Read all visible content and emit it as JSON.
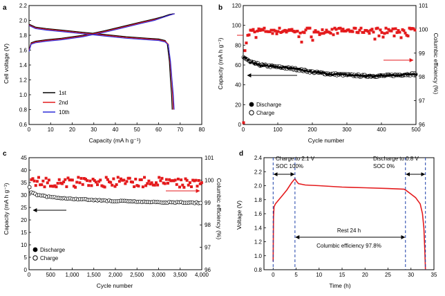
{
  "colors": {
    "black": "#000000",
    "red": "#e41a1c",
    "blue": "#2b2bd9",
    "dash_blue": "#1a3ea8"
  },
  "chart_data": [
    {
      "panel": "a",
      "type": "line",
      "xlabel": "Capacity (mA h g⁻¹)",
      "ylabel": "Cell voltage (V)",
      "xlim": [
        0,
        80
      ],
      "ylim": [
        0.6,
        2.2
      ],
      "xticks": [
        "0",
        "10",
        "20",
        "30",
        "40",
        "50",
        "60",
        "70",
        "80"
      ],
      "yticks": [
        "0.6",
        "0.8",
        "1.0",
        "1.2",
        "1.4",
        "1.6",
        "1.8",
        "2.0",
        "2.2"
      ],
      "legend": "bottom-right",
      "series": [
        {
          "name": "1st",
          "color": "#000000",
          "charge": {
            "x": [
              0,
              1,
              3,
              8,
              15,
              25,
              35,
              45,
              52,
              58,
              62,
              65,
              67
            ],
            "y": [
              1.6,
              1.7,
              1.72,
              1.74,
              1.76,
              1.8,
              1.86,
              1.93,
              1.98,
              2.02,
              2.05,
              2.08,
              2.09
            ]
          },
          "discharge": {
            "x": [
              0,
              3,
              8,
              15,
              25,
              35,
              45,
              55,
              60,
              63,
              64,
              65,
              65.5,
              66,
              66.3
            ],
            "y": [
              1.95,
              1.91,
              1.89,
              1.87,
              1.84,
              1.81,
              1.78,
              1.76,
              1.75,
              1.73,
              1.69,
              1.45,
              1.2,
              1.0,
              0.8
            ]
          }
        },
        {
          "name": "2nd",
          "color": "#e41a1c",
          "charge": {
            "x": [
              0,
              1,
              3,
              8,
              15,
              25,
              35,
              45,
              52,
              58,
              62,
              65,
              67.5
            ],
            "y": [
              1.6,
              1.69,
              1.71,
              1.73,
              1.75,
              1.79,
              1.85,
              1.92,
              1.97,
              2.01,
              2.04,
              2.07,
              2.09
            ]
          },
          "discharge": {
            "x": [
              0,
              3,
              8,
              15,
              25,
              35,
              45,
              55,
              60,
              63,
              64.5,
              65.3,
              66,
              66.5,
              66.8
            ],
            "y": [
              1.94,
              1.9,
              1.88,
              1.86,
              1.83,
              1.8,
              1.77,
              1.75,
              1.74,
              1.72,
              1.68,
              1.45,
              1.2,
              1.0,
              0.8
            ]
          }
        },
        {
          "name": "10th",
          "color": "#2b2bd9",
          "charge": {
            "x": [
              0,
              1,
              3,
              8,
              15,
              25,
              35,
              45,
              52,
              58,
              62,
              65,
              67.5
            ],
            "y": [
              1.58,
              1.68,
              1.7,
              1.72,
              1.74,
              1.78,
              1.84,
              1.91,
              1.96,
              2.0,
              2.04,
              2.07,
              2.09
            ]
          },
          "discharge": {
            "x": [
              0,
              3,
              8,
              15,
              25,
              35,
              45,
              55,
              60,
              63,
              64.5,
              65.5,
              66.2,
              66.8,
              67.2
            ],
            "y": [
              1.93,
              1.89,
              1.87,
              1.85,
              1.82,
              1.79,
              1.76,
              1.74,
              1.73,
              1.71,
              1.67,
              1.45,
              1.2,
              1.0,
              0.8
            ]
          }
        }
      ]
    },
    {
      "panel": "b",
      "type": "scatter",
      "xlabel": "Cycle number",
      "ylabel": "Capacity (mA h g⁻¹)",
      "y2label": "Columbic efficiency (%)",
      "xlim": [
        0,
        500
      ],
      "ylim": [
        0,
        120
      ],
      "y2lim": [
        96,
        101
      ],
      "xticks": [
        "0",
        "100",
        "200",
        "300",
        "400",
        "500"
      ],
      "yticks": [
        "0",
        "20",
        "40",
        "60",
        "80",
        "100",
        "120"
      ],
      "y2ticks": [
        "96",
        "97",
        "98",
        "99",
        "100",
        "101"
      ],
      "legend": "bottom-left",
      "legend_entries": [
        "Discharge",
        "Charge"
      ],
      "capacity_trend": {
        "x": [
          1,
          20,
          50,
          100,
          150,
          200,
          250,
          300,
          350,
          400,
          450,
          500
        ],
        "y": [
          68,
          63,
          60,
          58,
          56,
          53,
          51,
          50,
          49,
          49,
          50,
          51
        ]
      },
      "efficiency_trend": {
        "x": [
          1,
          5,
          10,
          20,
          50,
          100,
          200,
          300,
          400,
          500
        ],
        "y": [
          96.2,
          99.0,
          99.6,
          99.9,
          99.95,
          99.95,
          99.95,
          99.95,
          99.95,
          99.95
        ]
      }
    },
    {
      "panel": "c",
      "type": "scatter",
      "xlabel": "Cycle number",
      "ylabel": "Capacity (mA h g⁻¹)",
      "y2label": "Columbic efficiency (%)",
      "xlim": [
        0,
        4000
      ],
      "ylim": [
        0,
        45
      ],
      "y2lim": [
        96,
        101
      ],
      "xticks": [
        "0",
        "500",
        "1,000",
        "1,500",
        "2,000",
        "2,500",
        "3,000",
        "3,500",
        "4,000"
      ],
      "yticks": [
        "0",
        "5",
        "10",
        "15",
        "20",
        "25",
        "30",
        "35",
        "40",
        "45"
      ],
      "y2ticks": [
        "96",
        "97",
        "98",
        "99",
        "100",
        "101"
      ],
      "legend": "bottom-left",
      "legend_entries": [
        "Discharge",
        "Charge"
      ],
      "capacity_trend": {
        "x": [
          0,
          50,
          200,
          500,
          1000,
          1500,
          2000,
          2500,
          3000,
          3500,
          4000
        ],
        "y": [
          34,
          31,
          30,
          29.2,
          28.5,
          28,
          27.6,
          27.3,
          27.1,
          27,
          26.9
        ]
      },
      "efficiency_mean": 99.9
    },
    {
      "panel": "d",
      "type": "line",
      "xlabel": "Time (h)",
      "ylabel": "Voltage (V)",
      "xlim": [
        -2,
        35
      ],
      "ylim": [
        0.8,
        2.4
      ],
      "xticks": [
        "0",
        "5",
        "10",
        "15",
        "20",
        "25",
        "30",
        "35"
      ],
      "yticks": [
        "0.8",
        "1.0",
        "1.2",
        "1.4",
        "1.6",
        "1.8",
        "2.0",
        "2.2",
        "2.4"
      ],
      "series": [
        {
          "color": "#e41a1c",
          "x": [
            0,
            0.08,
            0.2,
            0.5,
            1,
            2,
            3,
            4,
            4.5,
            4.75,
            5,
            5.5,
            7,
            10,
            15,
            20,
            25,
            28.5,
            29,
            30,
            31,
            32,
            32.5,
            32.8,
            33,
            33.15
          ],
          "y": [
            0.92,
            1.55,
            1.7,
            1.74,
            1.78,
            1.86,
            1.94,
            2.04,
            2.08,
            2.1,
            2.07,
            2.03,
            2.01,
            2.0,
            1.98,
            1.97,
            1.96,
            1.95,
            1.93,
            1.88,
            1.83,
            1.74,
            1.6,
            1.4,
            1.1,
            0.8
          ]
        }
      ],
      "annotations": {
        "charge_title": "Charge to 2.1 V",
        "charge_soc": "SOC 100%",
        "discharge_title": "Discharge to 0.8 V",
        "discharge_soc": "SOC 0%",
        "rest": "Rest 24 h",
        "efficiency": "Columbic efficiency 97.8%"
      }
    }
  ]
}
